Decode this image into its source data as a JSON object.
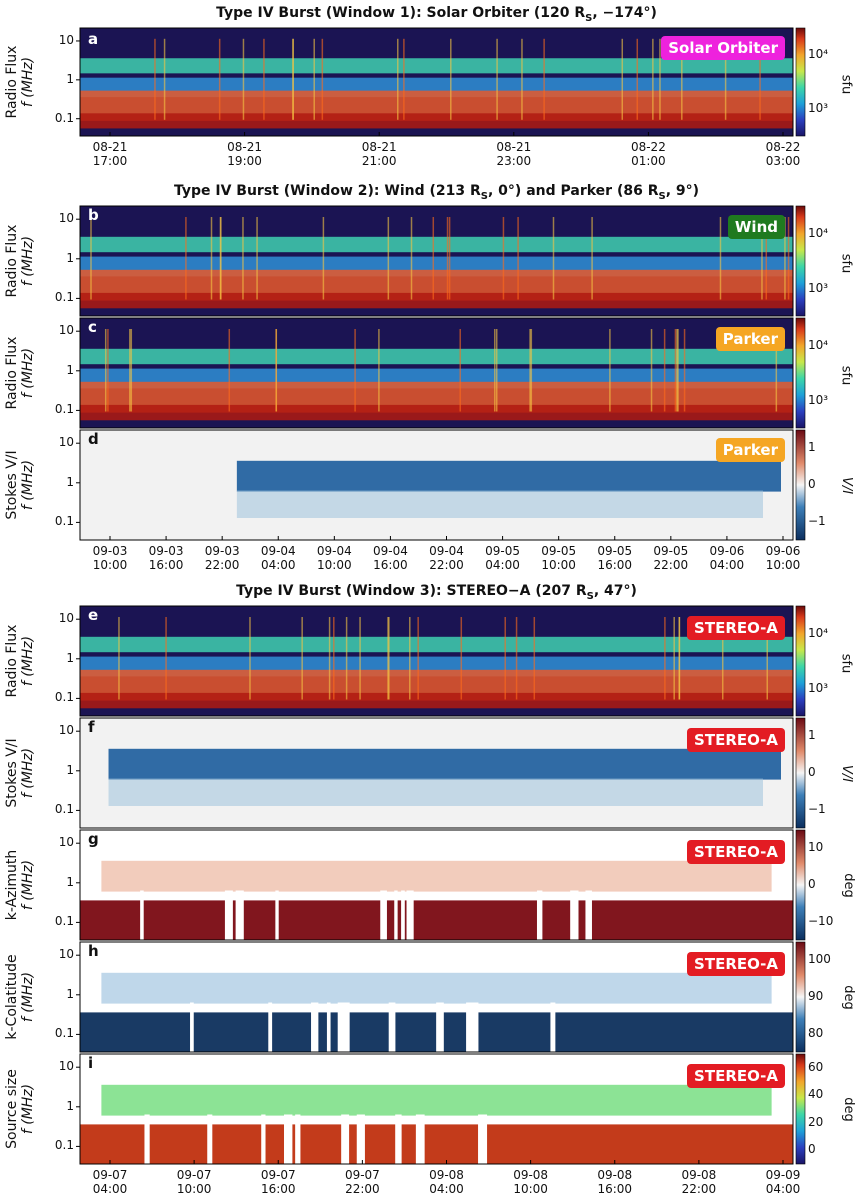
{
  "titles": {
    "w1": "Type IV Burst (Window 1): Solar Orbiter (120 R",
    "w1_tail": ", −174°)",
    "w2": "Type IV Burst (Window 2): Wind (213 R",
    "w2_mid": ", 0°) and Parker (86 R",
    "w2_tail": ", 9°)",
    "w3": "Type IV Burst (Window 3): STEREO−A (207 R",
    "w3_tail": ", 47°)",
    "sub_s": "S"
  },
  "yaxis": {
    "radio_flux": "Radio Flux",
    "freq": "f (MHz)",
    "stokes": "Stokes V/I",
    "k_azimuth": "k-Azimuth",
    "k_colatitude": "k-Colatitude",
    "source_size": "Source size"
  },
  "panels": {
    "a": {
      "label": "a",
      "badge": "Solar Orbiter",
      "badge_color": "#ee22dd"
    },
    "b": {
      "label": "b",
      "badge": "Wind",
      "badge_color": "#1f7a1f"
    },
    "c": {
      "label": "c",
      "badge": "Parker",
      "badge_color": "#f5a623"
    },
    "d": {
      "label": "d",
      "badge": "Parker",
      "badge_color": "#f5a623"
    },
    "e": {
      "label": "e",
      "badge": "STEREO-A",
      "badge_color": "#e31c23"
    },
    "f": {
      "label": "f",
      "badge": "STEREO-A",
      "badge_color": "#e31c23"
    },
    "g": {
      "label": "g",
      "badge": "STEREO-A",
      "badge_color": "#e31c23"
    },
    "h": {
      "label": "h",
      "badge": "STEREO-A",
      "badge_color": "#e31c23"
    },
    "i": {
      "label": "i",
      "badge": "STEREO-A",
      "badge_color": "#e31c23"
    }
  },
  "yticks": [
    "10",
    "1",
    "0.1"
  ],
  "colorbars": {
    "sfu": {
      "label": "sfu",
      "ticks": [
        "10⁴",
        "10³"
      ]
    },
    "vi": {
      "label": "V/I",
      "ticks": [
        "1",
        "0",
        "−1"
      ]
    },
    "azimuth": {
      "label": "deg",
      "ticks": [
        "10",
        "0",
        "−10"
      ]
    },
    "colat": {
      "label": "deg",
      "ticks": [
        "100",
        "90",
        "80"
      ]
    },
    "size": {
      "label": "deg",
      "ticks": [
        "60",
        "40",
        "20",
        "0"
      ]
    }
  },
  "xticks": {
    "w1": [
      [
        "08-21",
        "17:00"
      ],
      [
        "08-21",
        "19:00"
      ],
      [
        "08-21",
        "21:00"
      ],
      [
        "08-21",
        "23:00"
      ],
      [
        "08-22",
        "01:00"
      ],
      [
        "08-22",
        "03:00"
      ]
    ],
    "w2": [
      [
        "09-03",
        "10:00"
      ],
      [
        "09-03",
        "16:00"
      ],
      [
        "09-03",
        "22:00"
      ],
      [
        "09-04",
        "04:00"
      ],
      [
        "09-04",
        "10:00"
      ],
      [
        "09-04",
        "16:00"
      ],
      [
        "09-04",
        "22:00"
      ],
      [
        "09-05",
        "04:00"
      ],
      [
        "09-05",
        "10:00"
      ],
      [
        "09-05",
        "16:00"
      ],
      [
        "09-05",
        "22:00"
      ],
      [
        "09-06",
        "04:00"
      ],
      [
        "09-06",
        "10:00"
      ]
    ],
    "w3": [
      [
        "09-07",
        "04:00"
      ],
      [
        "09-07",
        "10:00"
      ],
      [
        "09-07",
        "16:00"
      ],
      [
        "09-07",
        "22:00"
      ],
      [
        "09-08",
        "04:00"
      ],
      [
        "09-08",
        "10:00"
      ],
      [
        "09-08",
        "16:00"
      ],
      [
        "09-08",
        "22:00"
      ],
      [
        "09-09",
        "04:00"
      ]
    ]
  },
  "chart_data": [
    {
      "type": "heatmap",
      "panel": "a",
      "xlabel": "",
      "ylabel": "Radio Flux f (MHz)",
      "x_range": [
        "08-21 16:00",
        "08-22 03:00"
      ],
      "ylim": [
        0.05,
        10
      ],
      "yscale": "log",
      "colorbar": "sfu"
    },
    {
      "type": "heatmap",
      "panel": "b",
      "xlabel": "",
      "ylabel": "Radio Flux f (MHz)",
      "x_range": [
        "09-03 10:00",
        "09-06 14:00"
      ],
      "ylim": [
        0.02,
        15
      ],
      "yscale": "log",
      "colorbar": "sfu"
    },
    {
      "type": "heatmap",
      "panel": "c",
      "xlabel": "",
      "ylabel": "Radio Flux f (MHz)",
      "x_range": [
        "09-03 10:00",
        "09-06 14:00"
      ],
      "ylim": [
        0.02,
        15
      ],
      "yscale": "log",
      "colorbar": "sfu"
    },
    {
      "type": "heatmap",
      "panel": "d",
      "xlabel": "",
      "ylabel": "Stokes V/I f (MHz)",
      "x_range": [
        "09-03 10:00",
        "09-06 14:00"
      ],
      "ylim": [
        0.02,
        15
      ],
      "yscale": "log",
      "colorbar": "V/I",
      "clim": [
        -1,
        1
      ]
    },
    {
      "type": "heatmap",
      "panel": "e",
      "xlabel": "",
      "ylabel": "Radio Flux f (MHz)",
      "x_range": [
        "09-07 00:00",
        "09-09 10:00"
      ],
      "ylim": [
        0.03,
        15
      ],
      "yscale": "log",
      "colorbar": "sfu"
    },
    {
      "type": "heatmap",
      "panel": "f",
      "xlabel": "",
      "ylabel": "Stokes V/I f (MHz)",
      "x_range": [
        "09-07 00:00",
        "09-09 10:00"
      ],
      "ylim": [
        0.1,
        15
      ],
      "yscale": "log",
      "colorbar": "V/I",
      "clim": [
        -1,
        1
      ]
    },
    {
      "type": "heatmap",
      "panel": "g",
      "xlabel": "",
      "ylabel": "k-Azimuth f (MHz)",
      "x_range": [
        "09-07 00:00",
        "09-09 10:00"
      ],
      "ylim": [
        0.1,
        15
      ],
      "yscale": "log",
      "colorbar": "deg",
      "clim": [
        -15,
        15
      ]
    },
    {
      "type": "heatmap",
      "panel": "h",
      "xlabel": "",
      "ylabel": "k-Colatitude f (MHz)",
      "x_range": [
        "09-07 00:00",
        "09-09 10:00"
      ],
      "ylim": [
        0.1,
        15
      ],
      "yscale": "log",
      "colorbar": "deg",
      "clim": [
        75,
        105
      ]
    },
    {
      "type": "heatmap",
      "panel": "i",
      "xlabel": "",
      "ylabel": "Source size f (MHz)",
      "x_range": [
        "09-07 00:00",
        "09-09 10:00"
      ],
      "ylim": [
        0.1,
        15
      ],
      "yscale": "log",
      "colorbar": "deg",
      "clim": [
        0,
        60
      ]
    }
  ]
}
